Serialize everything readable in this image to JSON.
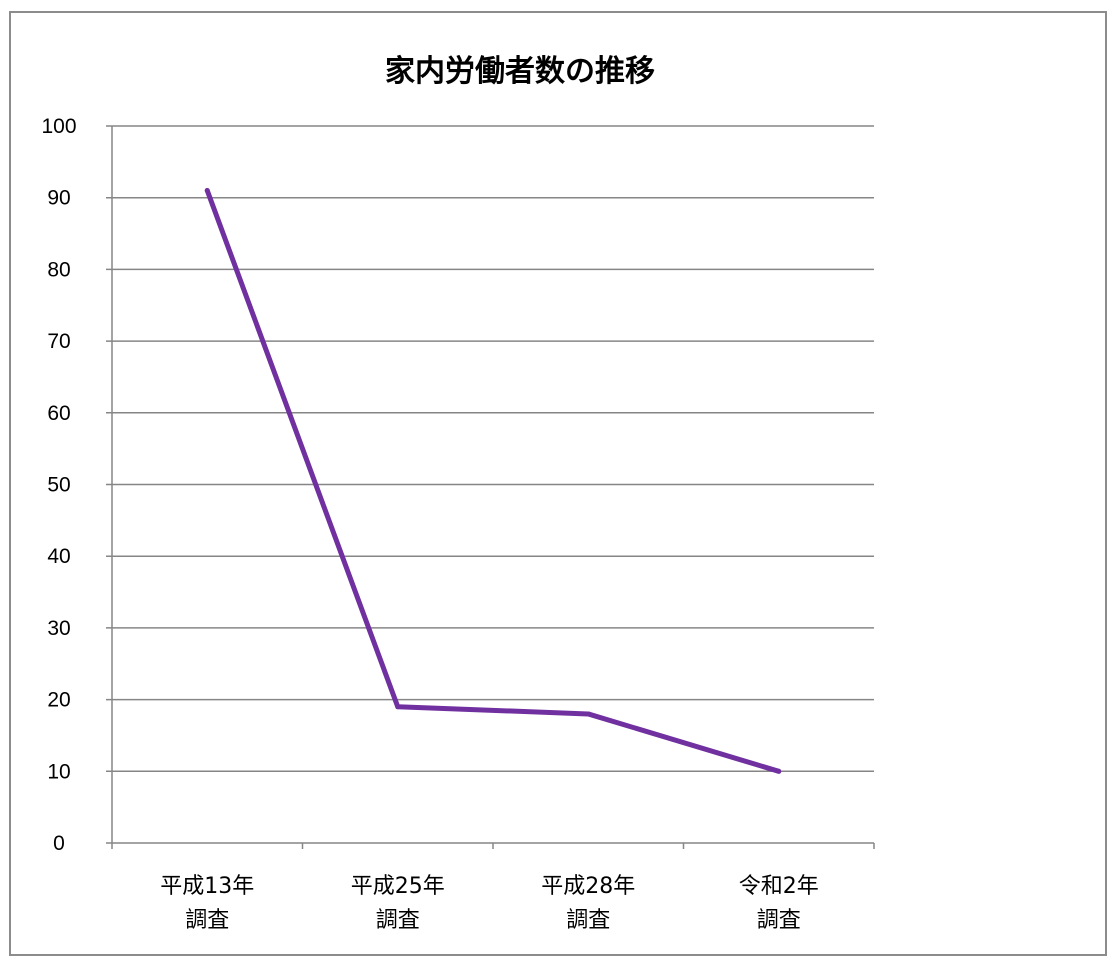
{
  "chart_data": {
    "type": "line",
    "title": "家内労働者数の推移",
    "xlabel": "",
    "ylabel": "",
    "categories": [
      [
        "平成13年",
        "調査"
      ],
      [
        "平成25年",
        "調査"
      ],
      [
        "平成28年",
        "調査"
      ],
      [
        "令和2年",
        "調査"
      ]
    ],
    "series": [
      {
        "values": [
          91,
          19,
          18,
          10
        ],
        "color": "#7030A0"
      }
    ],
    "ylim": [
      0,
      100
    ],
    "yticks": [
      0,
      10,
      20,
      30,
      40,
      50,
      60,
      70,
      80,
      90,
      100
    ],
    "grid": true,
    "legend": "none"
  }
}
